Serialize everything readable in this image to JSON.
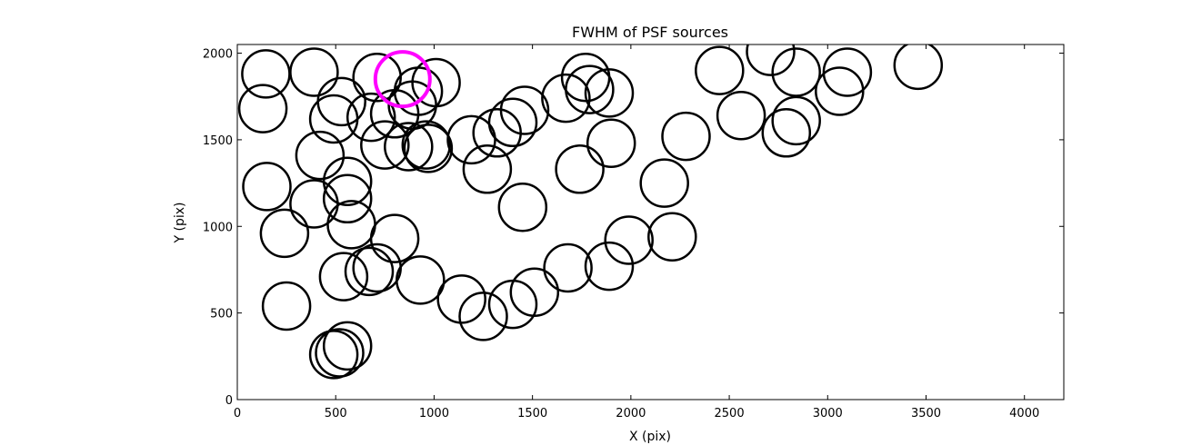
{
  "chart_data": {
    "type": "scatter",
    "title": "FWHM of PSF sources",
    "xlabel": "X (pix)",
    "ylabel": "Y (pix)",
    "xlim": [
      0,
      4200
    ],
    "ylim": [
      0,
      2050
    ],
    "xticks": [
      0,
      500,
      1000,
      1500,
      2000,
      2500,
      3000,
      3500,
      4000
    ],
    "yticks": [
      0,
      500,
      1000,
      1500,
      2000
    ],
    "grid": false,
    "marker": "hollow circle",
    "marker_color": "#000000",
    "highlight_color": "#ff00ff",
    "sources": [
      [
        145,
        1880
      ],
      [
        130,
        1680
      ],
      [
        390,
        1890
      ],
      [
        530,
        1720
      ],
      [
        490,
        1620
      ],
      [
        420,
        1410
      ],
      [
        150,
        1230
      ],
      [
        560,
        1260
      ],
      [
        560,
        1160
      ],
      [
        390,
        1130
      ],
      [
        240,
        960
      ],
      [
        580,
        1010
      ],
      [
        250,
        540
      ],
      [
        540,
        710
      ],
      [
        670,
        740
      ],
      [
        800,
        930
      ],
      [
        710,
        760
      ],
      [
        930,
        690
      ],
      [
        490,
        260
      ],
      [
        520,
        270
      ],
      [
        560,
        310
      ],
      [
        710,
        1860
      ],
      [
        680,
        1630
      ],
      [
        800,
        1650
      ],
      [
        750,
        1470
      ],
      [
        870,
        1460
      ],
      [
        890,
        1700
      ],
      [
        960,
        1470
      ],
      [
        970,
        1450
      ],
      [
        1010,
        1830
      ],
      [
        920,
        1780
      ],
      [
        1190,
        1500
      ],
      [
        1270,
        1330
      ],
      [
        1320,
        1540
      ],
      [
        1400,
        1600
      ],
      [
        1460,
        1670
      ],
      [
        1450,
        1110
      ],
      [
        1140,
        580
      ],
      [
        1250,
        480
      ],
      [
        1400,
        550
      ],
      [
        1510,
        620
      ],
      [
        1670,
        1740
      ],
      [
        1680,
        760
      ],
      [
        1740,
        1330
      ],
      [
        1770,
        1860
      ],
      [
        1790,
        1790
      ],
      [
        1890,
        1770
      ],
      [
        1900,
        1480
      ],
      [
        1890,
        770
      ],
      [
        1990,
        920
      ],
      [
        2170,
        1250
      ],
      [
        2210,
        940
      ],
      [
        2280,
        1520
      ],
      [
        2450,
        1900
      ],
      [
        2560,
        1640
      ],
      [
        2710,
        2010
      ],
      [
        2790,
        1540
      ],
      [
        2840,
        1610
      ],
      [
        2840,
        1890
      ],
      [
        3060,
        1780
      ],
      [
        3100,
        1890
      ],
      [
        3460,
        1930
      ]
    ],
    "highlighted_source": [
      840,
      1850
    ]
  }
}
